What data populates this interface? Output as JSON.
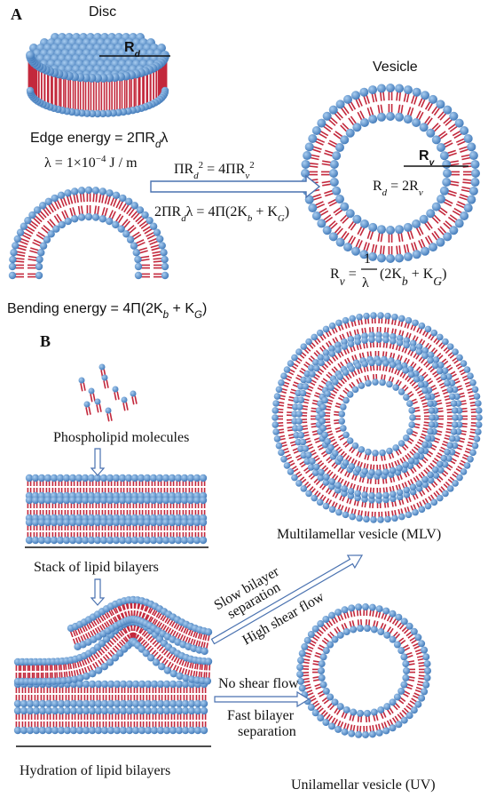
{
  "panel_a": {
    "label": "A",
    "disc_label": "Disc",
    "disc_radius": [
      {
        "text": "R"
      },
      {
        "sub": "d"
      }
    ],
    "edge_energy": [
      {
        "text": "Edge energy = 2ΠR"
      },
      {
        "sub": "d"
      },
      {
        "text": "λ"
      }
    ],
    "lambda_value": [
      {
        "text": "λ = 1×10"
      },
      {
        "sup": "−4"
      },
      {
        "text": " J / m"
      }
    ],
    "area_equation": [
      {
        "text": "ΠR"
      },
      {
        "sub": "d"
      },
      {
        "sup": "2"
      },
      {
        "text": " = 4ΠR"
      },
      {
        "sub": "v"
      },
      {
        "sup": "2"
      }
    ],
    "energy_equation": [
      {
        "text": "2ΠR"
      },
      {
        "sub": "d"
      },
      {
        "text": "λ = 4Π(2K"
      },
      {
        "sub": "b"
      },
      {
        "text": " + K"
      },
      {
        "sub": "G"
      },
      {
        "text": ")"
      }
    ],
    "vesicle_label": "Vesicle",
    "vesicle_radius": [
      {
        "text": "R"
      },
      {
        "sub": "v"
      }
    ],
    "radius_relation": [
      {
        "text": "R"
      },
      {
        "sub": "d"
      },
      {
        "text": " = 2R"
      },
      {
        "sub": "v"
      }
    ],
    "rv_formula": {
      "left": [
        {
          "text": "R"
        },
        {
          "sub": "v"
        },
        {
          "text": " ="
        }
      ],
      "numerator": "1",
      "denominator": "λ",
      "right": [
        {
          "text": "(2K"
        },
        {
          "sub": "b"
        },
        {
          "text": " + K"
        },
        {
          "sub": "G"
        },
        {
          "text": ")"
        }
      ]
    },
    "bending_energy": [
      {
        "text": "Bending energy = 4Π(2K"
      },
      {
        "sub": "b"
      },
      {
        "text": " + K"
      },
      {
        "sub": "G"
      },
      {
        "text": ")"
      }
    ]
  },
  "panel_b": {
    "label": "B",
    "phospholipid": "Phospholipid molecules",
    "stack": "Stack of  lipid bilayers",
    "hydration": "Hydration of lipid bilayers",
    "slow_separation": [
      "Slow bilayer",
      "separation"
    ],
    "high_shear": "High shear flow",
    "no_shear": "No shear flow",
    "fast_separation": [
      "Fast bilayer",
      "separation"
    ],
    "mlv": "Multilamellar vesicle (MLV)",
    "uv": "Unilamellar vesicle (UV)"
  }
}
